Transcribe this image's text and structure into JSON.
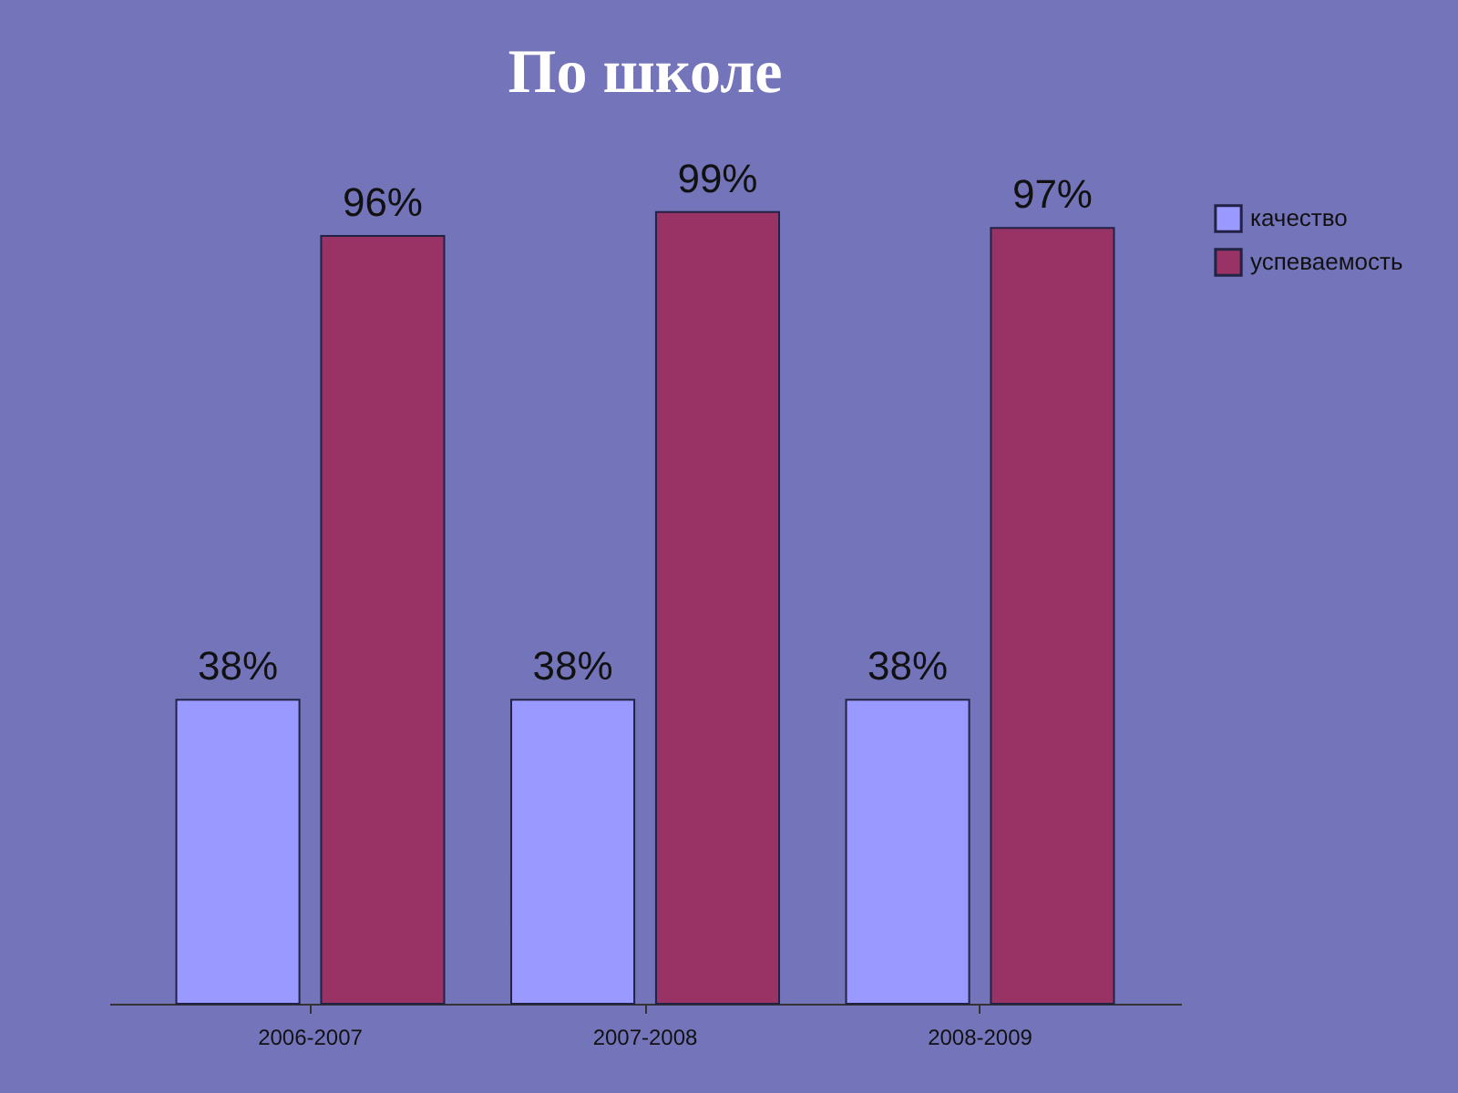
{
  "chart_data": {
    "type": "bar",
    "title": "По школе",
    "categories": [
      "2006-2007",
      "2007-2008",
      "2008-2009"
    ],
    "series": [
      {
        "name": "качество",
        "color": "#9999ff",
        "values": [
          38,
          38,
          38
        ],
        "value_labels": [
          "38%",
          "38%",
          "38%"
        ]
      },
      {
        "name": "успеваемость",
        "color": "#993366",
        "values": [
          96,
          99,
          97
        ],
        "value_labels": [
          "96%",
          "99%",
          "97%"
        ]
      }
    ],
    "legend": "right"
  }
}
